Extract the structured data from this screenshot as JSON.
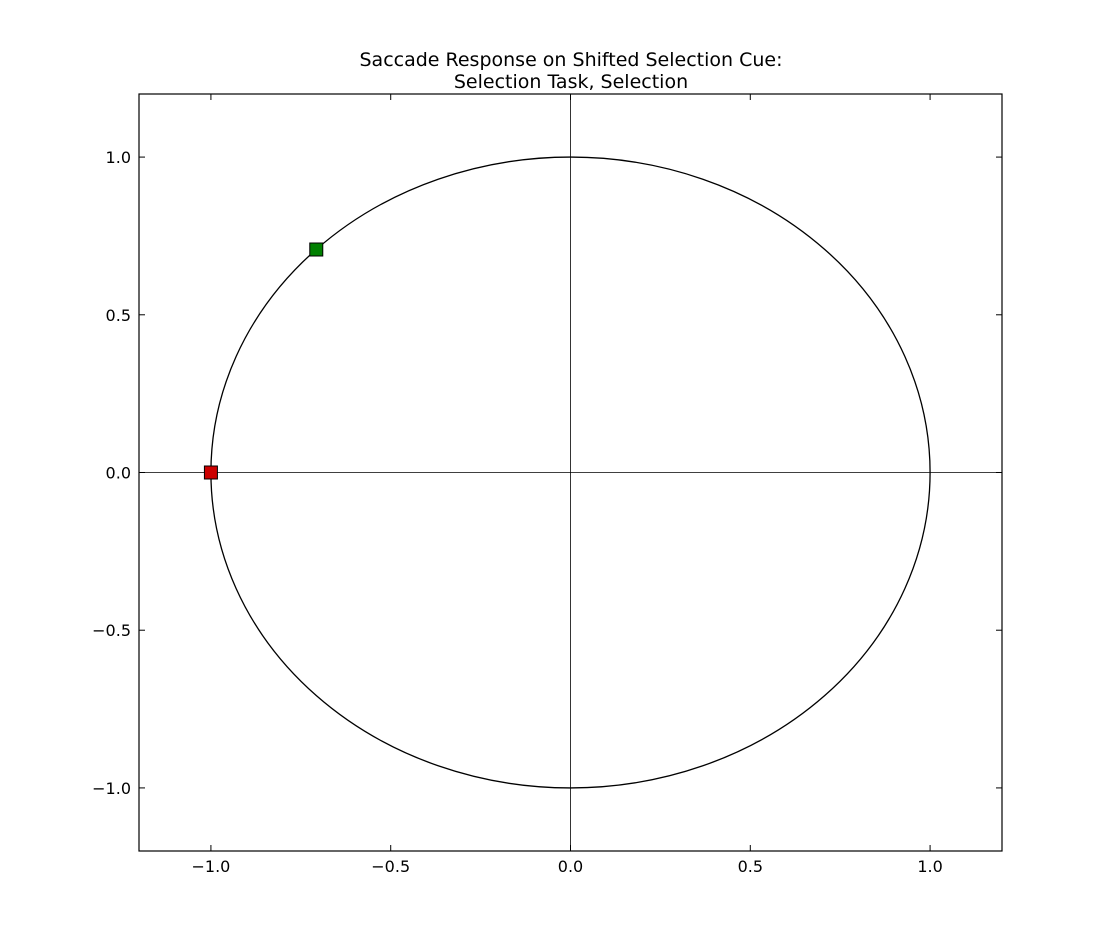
{
  "chart_data": {
    "type": "scatter",
    "title": [
      "Saccade Response on Shifted Selection Cue:",
      "Selection Task, Selection"
    ],
    "xlabel": "",
    "ylabel": "",
    "xlim": [
      -1.2,
      1.2
    ],
    "ylim": [
      -1.2,
      1.2
    ],
    "x_ticks": [
      -1.0,
      -0.5,
      0.0,
      0.5,
      1.0
    ],
    "y_ticks": [
      -1.0,
      -0.5,
      0.0,
      0.5,
      1.0
    ],
    "x_tick_labels": [
      "−1.0",
      "−0.5",
      "0.0",
      "0.5",
      "1.0"
    ],
    "y_tick_labels": [
      "−1.0",
      "−0.5",
      "0.0",
      "0.5",
      "1.0"
    ],
    "grid": false,
    "reference_lines": {
      "x": 0,
      "y": 0
    },
    "unit_circle": {
      "center": [
        0,
        0
      ],
      "radius": 1
    },
    "points": [
      {
        "x": -0.707,
        "y": 0.707,
        "marker": "square",
        "color": "#008000"
      },
      {
        "x": -1.0,
        "y": 0.0,
        "marker": "square",
        "color": "#cc0000"
      }
    ]
  }
}
